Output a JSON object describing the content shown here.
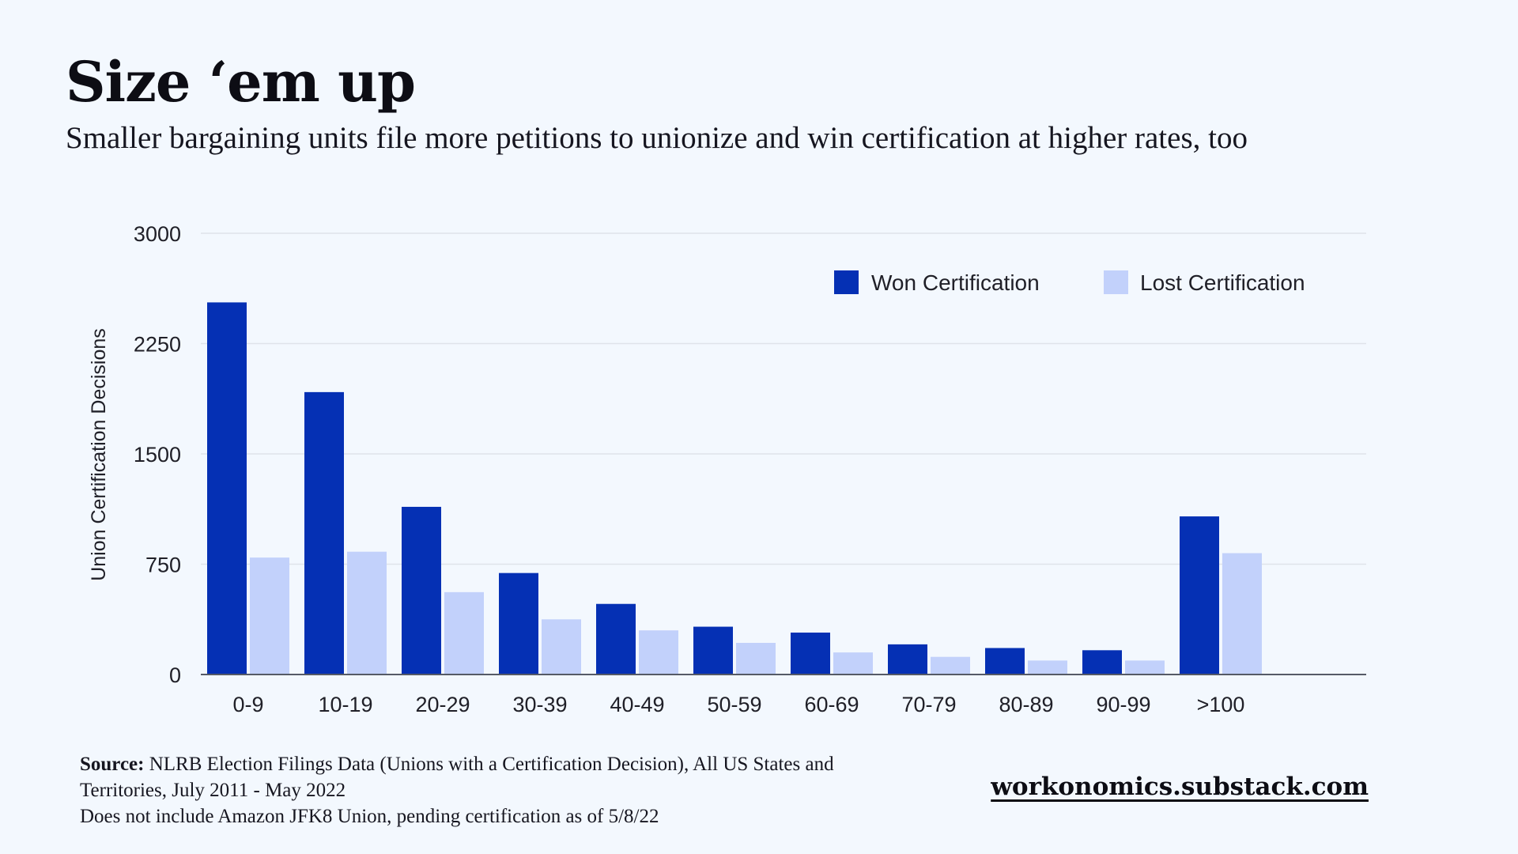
{
  "header": {
    "title": "Size ‘em up",
    "subtitle": "Smaller bargaining units file more petitions to unionize and win certification at higher rates, too"
  },
  "footer": {
    "source_label": "Source:",
    "source_text": "NLRB Election Filings Data (Unions with a Certification Decision), All US States and Territories, July 2011 - May 2022",
    "note": "Does not include Amazon JFK8 Union, pending certification as of 5/8/22",
    "site": "workonomics.substack.com"
  },
  "colors": {
    "won": "#0530b4",
    "lost": "#c2d1fb",
    "grid": "#dfe3ea",
    "axis": "#555a66"
  },
  "chart_data": {
    "type": "bar",
    "title": "Size ‘em up",
    "subtitle": "Smaller bargaining units file more petitions to unionize and win certification at higher rates, too",
    "xlabel": "",
    "ylabel": "Union Certification Decisions",
    "ylim": [
      0,
      3000
    ],
    "yticks": [
      0,
      750,
      1500,
      2250,
      3000
    ],
    "grid": true,
    "legend_position": "top-right",
    "categories": [
      "0-9",
      "10-19",
      "20-29",
      "30-39",
      "40-49",
      "50-59",
      "60-69",
      "70-79",
      "80-89",
      "90-99",
      ">100"
    ],
    "series": [
      {
        "name": "Won Certification",
        "values": [
          2530,
          1920,
          1140,
          690,
          480,
          325,
          285,
          205,
          180,
          165,
          1075
        ]
      },
      {
        "name": "Lost Certification",
        "values": [
          795,
          835,
          560,
          375,
          300,
          215,
          150,
          120,
          95,
          95,
          825
        ]
      }
    ]
  }
}
